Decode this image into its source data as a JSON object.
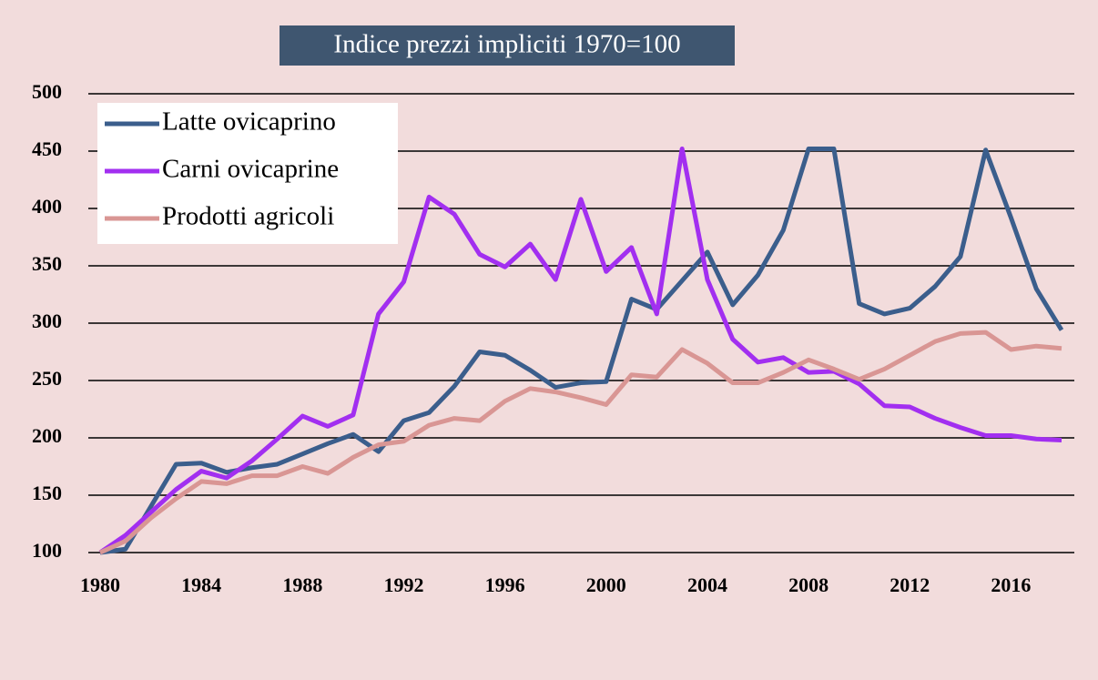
{
  "chart_data": {
    "type": "line",
    "title": "Indice prezzi impliciti 1970=100",
    "x": [
      1980,
      1981,
      1982,
      1983,
      1984,
      1985,
      1986,
      1987,
      1988,
      1989,
      1990,
      1991,
      1992,
      1993,
      1994,
      1995,
      1996,
      1997,
      1998,
      1999,
      2000,
      2001,
      2002,
      2003,
      2004,
      2005,
      2006,
      2007,
      2008,
      2009,
      2010,
      2011,
      2012,
      2013,
      2014,
      2015,
      2016,
      2017,
      2018
    ],
    "series": [
      {
        "name": "Latte ovicaprino",
        "color": "#3b5e8c",
        "values": [
          100,
          103,
          140,
          177,
          178,
          170,
          174,
          177,
          186,
          195,
          203,
          188,
          215,
          222,
          245,
          275,
          272,
          259,
          244,
          248,
          249,
          321,
          312,
          337,
          362,
          316,
          342,
          381,
          452,
          452,
          317,
          308,
          313,
          332,
          358,
          451,
          392,
          330,
          294
        ]
      },
      {
        "name": "Carni ovicaprine",
        "color": "#a22ff0",
        "values": [
          100,
          115,
          135,
          155,
          171,
          165,
          180,
          199,
          219,
          210,
          220,
          308,
          336,
          410,
          395,
          360,
          349,
          369,
          338,
          408,
          345,
          366,
          308,
          452,
          338,
          286,
          266,
          270,
          257,
          258,
          247,
          228,
          227,
          217,
          209,
          202,
          202,
          199,
          198
        ]
      },
      {
        "name": "Prodotti agricoli",
        "color": "#d99694",
        "values": [
          100,
          110,
          130,
          147,
          162,
          160,
          167,
          167,
          175,
          169,
          183,
          194,
          197,
          211,
          217,
          215,
          232,
          243,
          240,
          235,
          229,
          255,
          253,
          277,
          265,
          248,
          248,
          257,
          268,
          260,
          251,
          260,
          272,
          284,
          291,
          292,
          277,
          280,
          278
        ]
      }
    ],
    "xlim": [
      1980,
      2018
    ],
    "xticks": [
      1980,
      1984,
      1988,
      1992,
      1996,
      2000,
      2004,
      2008,
      2012,
      2016
    ],
    "ylim": [
      100,
      500
    ],
    "yticks": [
      100,
      150,
      200,
      250,
      300,
      350,
      400,
      450,
      500
    ],
    "grid": true,
    "legend": "upper left"
  }
}
